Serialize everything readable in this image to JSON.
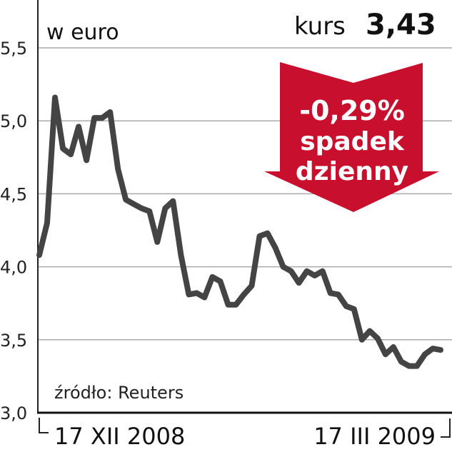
{
  "chart_data": {
    "type": "line",
    "ylabel": "w euro",
    "ylim": [
      3.0,
      5.5
    ],
    "yticks": [
      "5,5",
      "5,0",
      "4,5",
      "4,0",
      "3,5",
      "3,0"
    ],
    "ytick_values": [
      5.5,
      5.0,
      4.5,
      4.0,
      3.5,
      3.0
    ],
    "xtick_labels": [
      "17 XII 2008",
      "17 III 2009"
    ],
    "grid": true,
    "source": "źródło: Reuters",
    "line_color": "#444444",
    "series": [
      {
        "values": [
          4.08,
          4.3,
          5.16,
          4.81,
          4.77,
          4.96,
          4.73,
          5.02,
          5.02,
          5.06,
          4.67,
          4.46,
          4.43,
          4.4,
          4.38,
          4.17,
          4.4,
          4.45,
          4.08,
          3.81,
          3.82,
          3.79,
          3.93,
          3.9,
          3.74,
          3.74,
          3.81,
          3.87,
          4.21,
          4.23,
          4.13,
          4.0,
          3.97,
          3.89,
          3.97,
          3.94,
          3.97,
          3.82,
          3.81,
          3.73,
          3.71,
          3.5,
          3.56,
          3.51,
          3.4,
          3.45,
          3.35,
          3.32,
          3.32,
          3.4,
          3.44,
          3.43
        ]
      }
    ]
  },
  "header": {
    "kurs_label": "kurs",
    "kurs_value": "3,43"
  },
  "badge": {
    "change": "-0,29%",
    "line1": "spadek",
    "line2": "dzienny",
    "color": "#c8102e"
  }
}
